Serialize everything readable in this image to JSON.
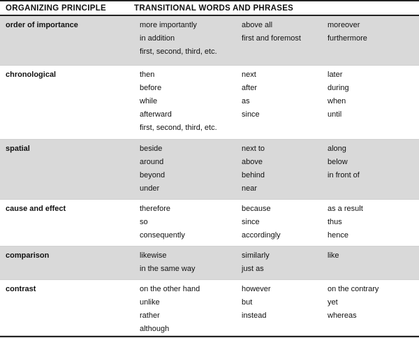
{
  "header": {
    "principle": "ORGANIZING PRINCIPLE",
    "transitions": "TRANSITIONAL WORDS AND PHRASES"
  },
  "rows": [
    {
      "principle": "order of importance",
      "shaded": true,
      "col1": [
        "more importantly",
        "in addition",
        "first, second, third, etc."
      ],
      "col2": [
        "above all",
        "first and foremost"
      ],
      "col3": [
        "moreover",
        "furthermore"
      ]
    },
    {
      "principle": "chronological",
      "shaded": false,
      "col1": [
        "then",
        "before",
        "while",
        "afterward",
        "first, second, third, etc."
      ],
      "col2": [
        "next",
        "after",
        "as",
        "since"
      ],
      "col3": [
        "later",
        "during",
        "when",
        "until"
      ]
    },
    {
      "principle": "spatial",
      "shaded": true,
      "col1": [
        "beside",
        "around",
        "beyond",
        "under"
      ],
      "col2": [
        "next to",
        "above",
        "behind",
        "near"
      ],
      "col3": [
        "along",
        "below",
        "in front of"
      ]
    },
    {
      "principle": "cause and effect",
      "shaded": false,
      "col1": [
        "therefore",
        "so",
        "consequently"
      ],
      "col2": [
        "because",
        "since",
        "accordingly"
      ],
      "col3": [
        "as a result",
        "thus",
        "hence"
      ]
    },
    {
      "principle": "comparison",
      "shaded": true,
      "col1": [
        "likewise",
        "in the same way"
      ],
      "col2": [
        "similarly",
        "just as"
      ],
      "col3": [
        "like"
      ]
    },
    {
      "principle": "contrast",
      "shaded": false,
      "col1": [
        "on the other hand",
        "unlike",
        "rather",
        "although"
      ],
      "col2": [
        "however",
        "but",
        "instead"
      ],
      "col3": [
        "on the contrary",
        "yet",
        "whereas"
      ]
    }
  ]
}
